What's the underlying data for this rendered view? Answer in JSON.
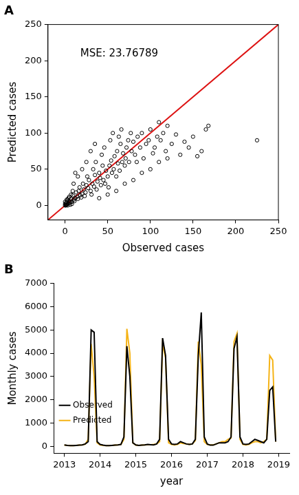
{
  "chart_data": [
    {
      "type": "scatter",
      "title": "A",
      "x_label": "Observed cases",
      "y_label": "Predicted cases",
      "annotation": "MSE: 23.76789",
      "xlim": [
        -20,
        250
      ],
      "ylim": [
        -20,
        250
      ],
      "xticks": [
        0,
        50,
        100,
        150,
        200,
        250
      ],
      "yticks": [
        0,
        50,
        100,
        150,
        200,
        250
      ],
      "grid": false,
      "series": [
        {
          "type": "scatter",
          "color": "#000000",
          "marker": "open_circle",
          "x": [
            0,
            1,
            2,
            1,
            3,
            2,
            4,
            5,
            3,
            6,
            7,
            8,
            5,
            10,
            9,
            12,
            11,
            14,
            13,
            15,
            16,
            18,
            17,
            20,
            19,
            22,
            21,
            24,
            25,
            23,
            27,
            28,
            30,
            26,
            32,
            31,
            34,
            35,
            33,
            37,
            38,
            40,
            36,
            42,
            41,
            44,
            45,
            43,
            47,
            48,
            50,
            46,
            52,
            51,
            54,
            55,
            53,
            57,
            58,
            60,
            56,
            62,
            61,
            64,
            65,
            63,
            67,
            68,
            70,
            66,
            72,
            71,
            74,
            75,
            78,
            80,
            77,
            82,
            85,
            84,
            88,
            90,
            95,
            92,
            98,
            100,
            105,
            103,
            110,
            108,
            112,
            115,
            118,
            120,
            125,
            130,
            135,
            140,
            145,
            150,
            155,
            160,
            165,
            168,
            225,
            40,
            50,
            60,
            70,
            80,
            90,
            100,
            110,
            120,
            10,
            15,
            20,
            25,
            30,
            35,
            12,
            0,
            0,
            1,
            2,
            3,
            4,
            6,
            7,
            8,
            9
          ],
          "values": [
            0,
            1,
            1,
            3,
            2,
            5,
            3,
            6,
            8,
            4,
            9,
            5,
            12,
            8,
            14,
            10,
            6,
            12,
            18,
            9,
            20,
            14,
            25,
            16,
            11,
            22,
            30,
            18,
            28,
            13,
            24,
            35,
            20,
            40,
            30,
            15,
            26,
            42,
            50,
            22,
            33,
            45,
            60,
            28,
            38,
            55,
            35,
            70,
            30,
            48,
            40,
            80,
            55,
            25,
            62,
            45,
            90,
            50,
            68,
            40,
            100,
            58,
            75,
            48,
            85,
            95,
            60,
            72,
            55,
            105,
            80,
            65,
            90,
            60,
            75,
            88,
            100,
            70,
            95,
            60,
            80,
            100,
            85,
            65,
            90,
            105,
            80,
            72,
            115,
            95,
            90,
            100,
            75,
            110,
            85,
            98,
            70,
            88,
            80,
            95,
            68,
            75,
            105,
            110,
            90,
            10,
            15,
            20,
            30,
            35,
            45,
            50,
            60,
            65,
            30,
            40,
            50,
            60,
            75,
            85,
            45,
            2,
            5,
            0,
            8,
            0,
            10,
            1,
            15,
            2,
            20
          ]
        },
        {
          "type": "line",
          "color": "#dd1111",
          "line_style": "solid",
          "x": [
            -20,
            250
          ],
          "values": [
            -20,
            250
          ]
        }
      ]
    },
    {
      "type": "line",
      "title": "B",
      "x_label": "year",
      "y_label": "Monthly cases",
      "x": [
        2013.0,
        2013.083,
        2013.167,
        2013.25,
        2013.333,
        2013.417,
        2013.5,
        2013.583,
        2013.667,
        2013.75,
        2013.833,
        2013.917,
        2014.0,
        2014.083,
        2014.167,
        2014.25,
        2014.333,
        2014.417,
        2014.5,
        2014.583,
        2014.667,
        2014.75,
        2014.833,
        2014.917,
        2015.0,
        2015.083,
        2015.167,
        2015.25,
        2015.333,
        2015.417,
        2015.5,
        2015.583,
        2015.667,
        2015.75,
        2015.833,
        2015.917,
        2016.0,
        2016.083,
        2016.167,
        2016.25,
        2016.333,
        2016.417,
        2016.5,
        2016.583,
        2016.667,
        2016.75,
        2016.833,
        2016.917,
        2017.0,
        2017.083,
        2017.167,
        2017.25,
        2017.333,
        2017.417,
        2017.5,
        2017.583,
        2017.667,
        2017.75,
        2017.833,
        2017.917,
        2018.0,
        2018.083,
        2018.167,
        2018.25,
        2018.333,
        2018.417,
        2018.5,
        2018.583,
        2018.667,
        2018.75,
        2018.833,
        2018.917
      ],
      "xlim": [
        2012.7,
        2019.3
      ],
      "xticks": [
        2013,
        2014,
        2015,
        2016,
        2017,
        2018,
        2019
      ],
      "ylim": [
        -300,
        7000
      ],
      "yticks": [
        0,
        1000,
        2000,
        3000,
        4000,
        5000,
        6000,
        7000
      ],
      "grid": false,
      "legend": "upper right",
      "series": [
        {
          "name": "Observed",
          "color": "#000000",
          "line_style": "solid",
          "values": [
            60,
            40,
            30,
            30,
            40,
            50,
            60,
            100,
            200,
            5000,
            4900,
            200,
            80,
            50,
            30,
            30,
            40,
            50,
            60,
            80,
            400,
            4300,
            3000,
            150,
            60,
            40,
            50,
            60,
            80,
            70,
            60,
            100,
            300,
            4650,
            3900,
            300,
            100,
            80,
            100,
            200,
            150,
            100,
            80,
            100,
            300,
            3900,
            5750,
            400,
            100,
            50,
            50,
            100,
            150,
            150,
            150,
            200,
            400,
            4200,
            4700,
            400,
            100,
            80,
            100,
            200,
            300,
            250,
            200,
            150,
            300,
            2400,
            2550,
            200
          ]
        },
        {
          "name": "Predicted",
          "color": "#f5b316",
          "line_style": "solid",
          "values": [
            50,
            40,
            30,
            30,
            40,
            50,
            60,
            90,
            300,
            4400,
            3000,
            150,
            60,
            40,
            30,
            30,
            40,
            50,
            60,
            80,
            300,
            5050,
            4000,
            150,
            50,
            40,
            50,
            60,
            70,
            70,
            80,
            100,
            200,
            4400,
            3800,
            150,
            80,
            60,
            80,
            150,
            120,
            100,
            80,
            100,
            250,
            4500,
            3500,
            200,
            80,
            60,
            60,
            100,
            150,
            200,
            200,
            300,
            350,
            4500,
            4850,
            300,
            80,
            60,
            80,
            150,
            200,
            200,
            150,
            200,
            300,
            3900,
            3700,
            200
          ]
        }
      ]
    }
  ]
}
